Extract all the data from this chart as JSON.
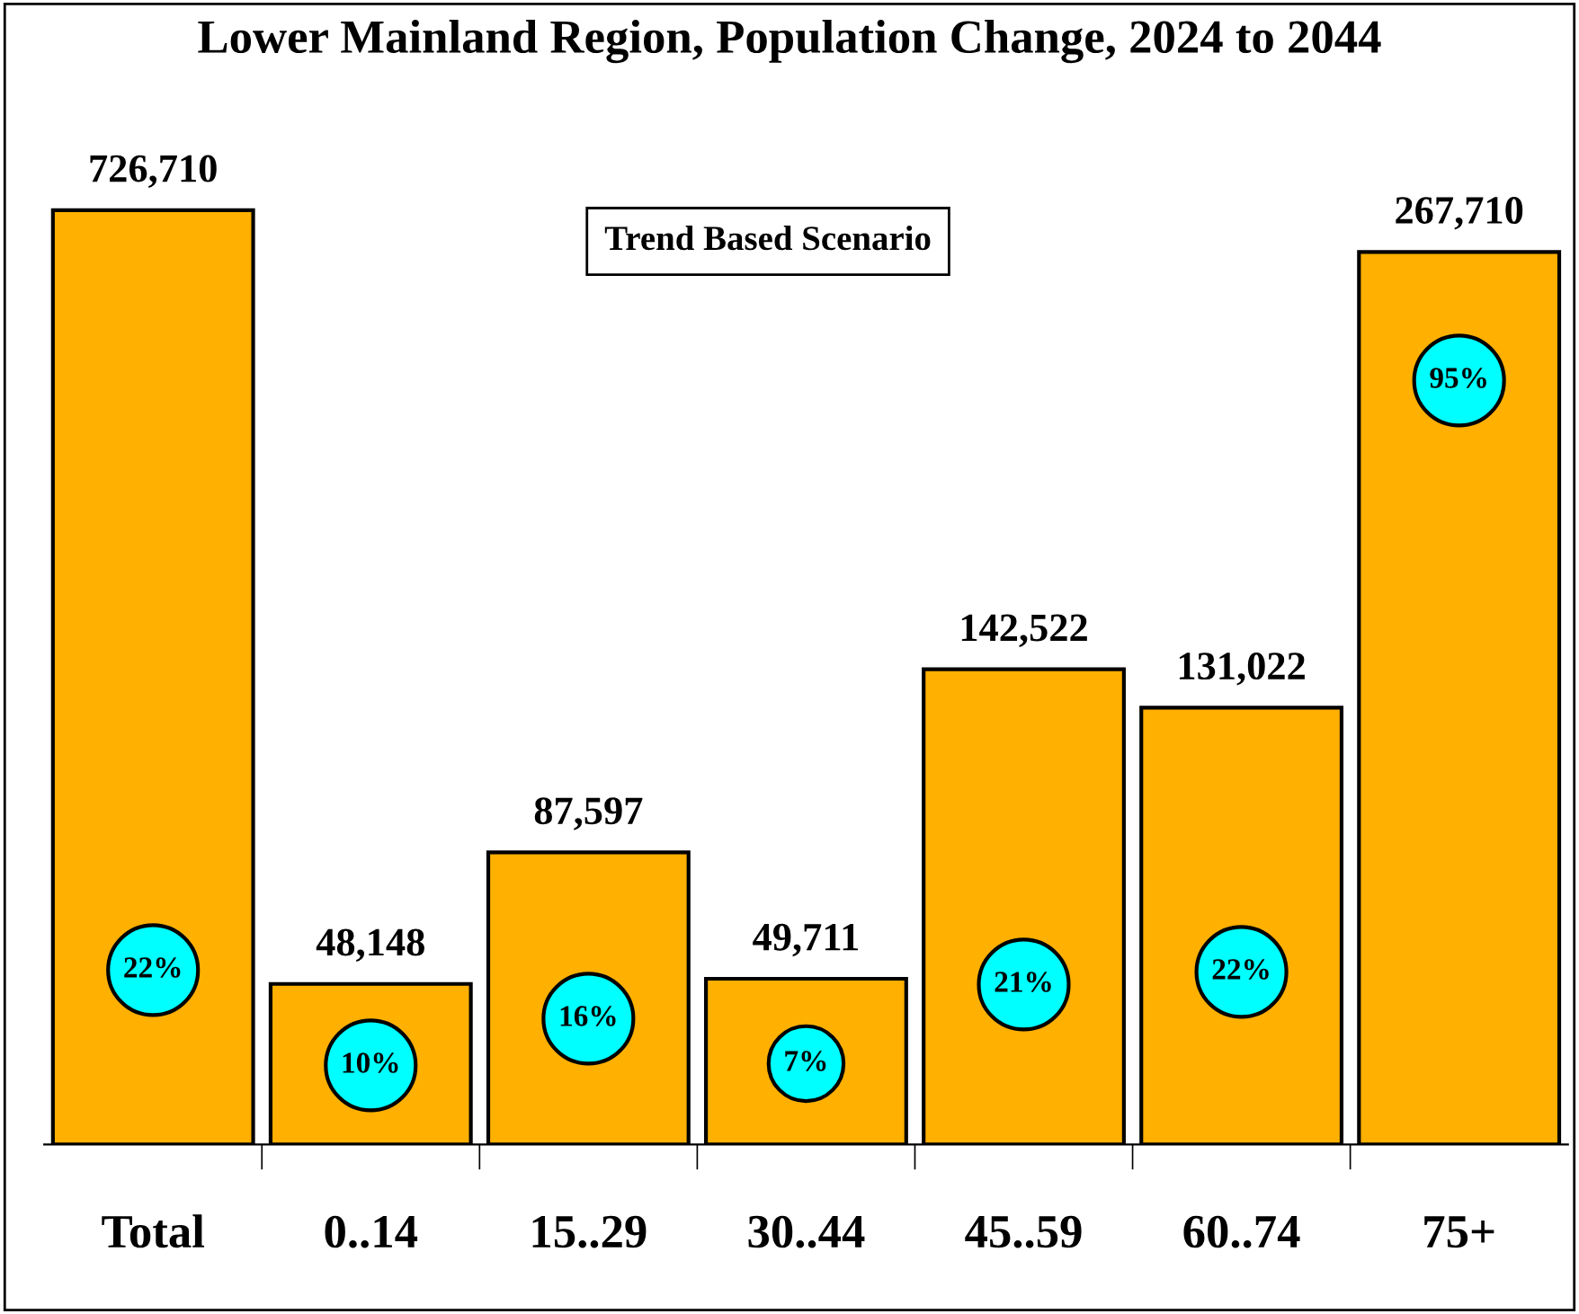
{
  "chart_data": {
    "type": "bar",
    "title": "Lower Mainland Region, Population Change, 2024 to 2044",
    "subtitle": "Trend Based Scenario",
    "categories": [
      "Total",
      "0..14",
      "15..29",
      "30..44",
      "45..59",
      "60..74",
      "75+"
    ],
    "series": [
      {
        "color": "#ffb000",
        "axis": "y2",
        "values": [
          726710,
          null,
          null,
          null,
          null,
          null,
          null
        ],
        "value_labels": [
          "726,710",
          null,
          null,
          null,
          null,
          null,
          null
        ]
      },
      {
        "color": "#ffb000",
        "values": [
          null,
          48148,
          87597,
          49711,
          142522,
          131022,
          267710
        ],
        "value_labels": [
          null,
          "48,148",
          "87,597",
          "49,711",
          "142,522",
          "131,022",
          "267,710"
        ]
      }
    ],
    "grid": false,
    "annotations": [
      "22%",
      "10%",
      "16%",
      "7%",
      "21%",
      "22%",
      "95%"
    ]
  }
}
